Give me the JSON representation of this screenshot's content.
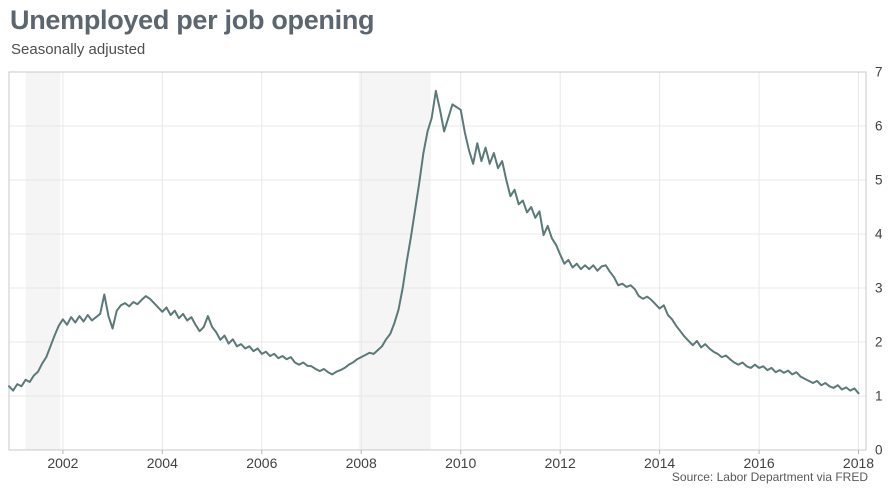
{
  "header": {
    "title": "Unemployed per job opening",
    "subtitle": "Seasonally adjusted"
  },
  "footer": {
    "source": "Source: Labor Department via FRED"
  },
  "colors": {
    "title": "#5b6670",
    "subtitle": "#4d4f53",
    "line": "#597a78",
    "recession_band": "#f5f5f5",
    "grid": "#e8e8e8",
    "plot_border": "#c9c9c9",
    "tick_mark": "#b5b5b5",
    "axis_text": "#3f4144",
    "source_text": "#58595b",
    "background": "#ffffff"
  },
  "chart_data": {
    "type": "line",
    "title": "Unemployed per job opening",
    "subtitle": "Seasonally adjusted",
    "source": "Source: Labor Department via FRED",
    "grid": "on",
    "legend": "none",
    "x_axis": {
      "start_year_decimal": 2000.9167,
      "end_year_decimal": 2018.15,
      "tick_years": [
        2002,
        2004,
        2006,
        2008,
        2010,
        2012,
        2014,
        2016,
        2018
      ]
    },
    "y_axis": {
      "min": 0,
      "max": 7,
      "ticks": [
        0,
        1,
        2,
        3,
        4,
        5,
        6,
        7
      ],
      "side": "right"
    },
    "recession_bands": [
      {
        "start_year_decimal": 2001.25,
        "end_year_decimal": 2001.95
      },
      {
        "start_year_decimal": 2007.95,
        "end_year_decimal": 2009.4
      }
    ],
    "series": [
      {
        "name": "Unemployed per job opening (seasonally adjusted)",
        "start_month": "2000-12",
        "end_month": "2018-01",
        "frequency": "monthly",
        "values": [
          1.18,
          1.1,
          1.22,
          1.18,
          1.3,
          1.26,
          1.38,
          1.45,
          1.6,
          1.72,
          1.92,
          2.12,
          2.3,
          2.42,
          2.32,
          2.46,
          2.36,
          2.48,
          2.38,
          2.5,
          2.4,
          2.46,
          2.52,
          2.88,
          2.48,
          2.25,
          2.58,
          2.68,
          2.72,
          2.66,
          2.74,
          2.7,
          2.78,
          2.85,
          2.8,
          2.72,
          2.64,
          2.56,
          2.64,
          2.5,
          2.58,
          2.44,
          2.52,
          2.4,
          2.46,
          2.32,
          2.2,
          2.28,
          2.48,
          2.28,
          2.18,
          2.04,
          2.12,
          1.97,
          2.05,
          1.92,
          1.96,
          1.88,
          1.92,
          1.83,
          1.88,
          1.78,
          1.82,
          1.74,
          1.78,
          1.7,
          1.74,
          1.68,
          1.72,
          1.62,
          1.58,
          1.62,
          1.56,
          1.55,
          1.5,
          1.46,
          1.5,
          1.44,
          1.4,
          1.45,
          1.48,
          1.52,
          1.58,
          1.62,
          1.68,
          1.72,
          1.76,
          1.8,
          1.78,
          1.85,
          1.92,
          2.05,
          2.15,
          2.35,
          2.6,
          3.0,
          3.5,
          3.95,
          4.45,
          4.95,
          5.5,
          5.9,
          6.15,
          6.65,
          6.3,
          5.9,
          6.15,
          6.4,
          6.35,
          6.3,
          5.88,
          5.55,
          5.3,
          5.68,
          5.35,
          5.6,
          5.3,
          5.5,
          5.22,
          5.35,
          5.0,
          4.7,
          4.82,
          4.55,
          4.62,
          4.4,
          4.5,
          4.3,
          4.42,
          3.98,
          4.15,
          3.92,
          3.8,
          3.62,
          3.45,
          3.52,
          3.38,
          3.45,
          3.35,
          3.42,
          3.35,
          3.42,
          3.32,
          3.4,
          3.42,
          3.3,
          3.2,
          3.05,
          3.08,
          3.02,
          3.05,
          2.98,
          2.85,
          2.8,
          2.84,
          2.78,
          2.7,
          2.62,
          2.68,
          2.5,
          2.42,
          2.3,
          2.2,
          2.1,
          2.02,
          1.94,
          2.02,
          1.9,
          1.96,
          1.88,
          1.82,
          1.78,
          1.72,
          1.75,
          1.68,
          1.62,
          1.58,
          1.62,
          1.55,
          1.52,
          1.58,
          1.52,
          1.55,
          1.48,
          1.52,
          1.44,
          1.48,
          1.43,
          1.47,
          1.4,
          1.44,
          1.36,
          1.32,
          1.28,
          1.24,
          1.28,
          1.2,
          1.24,
          1.18,
          1.15,
          1.2,
          1.12,
          1.16,
          1.1,
          1.14,
          1.05
        ]
      }
    ]
  }
}
